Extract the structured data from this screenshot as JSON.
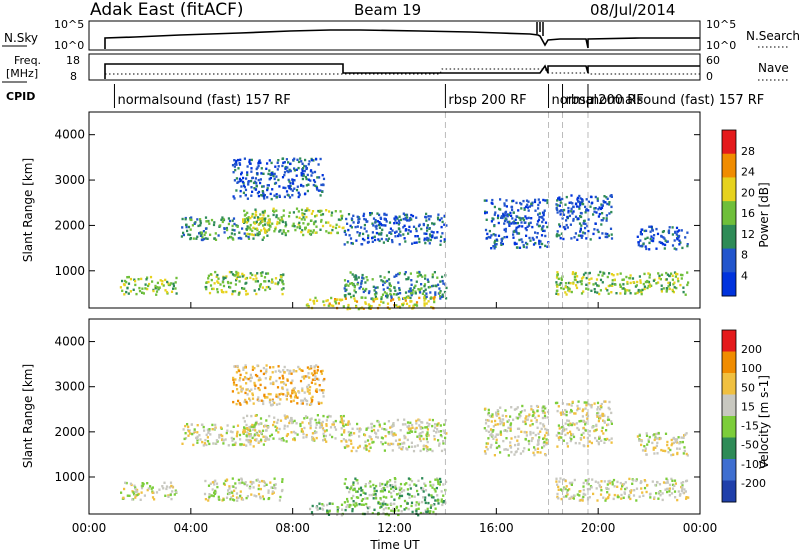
{
  "header": {
    "station": "Adak East (fitACF)",
    "beam": "Beam 19",
    "date": "08/Jul/2014"
  },
  "panels": {
    "nsky_label": "N.Sky",
    "nsky_ticks": [
      "10^5",
      "10^0"
    ],
    "nsearch_label": "N.Search",
    "nsearch_ticks": [
      "10^5",
      "10^0"
    ],
    "freq_label": "Freq.",
    "freq_unit": "[MHz]",
    "freq_ticks": [
      "18",
      "8"
    ],
    "nave_label": "Nave",
    "nave_ticks": [
      "60",
      "0"
    ],
    "cpid_label": "CPID",
    "cpid_segments": [
      {
        "start": 1.0,
        "end": 14.0,
        "label": "normalsound (fast) 157 RF"
      },
      {
        "start": 14.0,
        "end": 18.0,
        "label": "rbsp 200 RF"
      },
      {
        "start": 18.05,
        "end": 18.6,
        "label": "normal"
      },
      {
        "start": 18.6,
        "end": 19.6,
        "label": "rbsp 200 RF"
      },
      {
        "start": 19.6,
        "end": 24.0,
        "label": "normalsound (fast) 157 RF"
      }
    ]
  },
  "colors": {
    "power": [
      "#0033dd",
      "#2255cc",
      "#2e8b57",
      "#6fbf3a",
      "#e6d21e",
      "#f08c00",
      "#e41a1c"
    ],
    "velocity": [
      "#1f3faa",
      "#3f6fd0",
      "#2e8b57",
      "#7ccd3a",
      "#c8c8c0",
      "#f0c040",
      "#f08c00",
      "#e41a1c"
    ]
  },
  "chart_data": [
    {
      "type": "heatmap",
      "title": "",
      "xlabel": "",
      "ylabel": "Slant Range [km]",
      "quantity": "Power",
      "colorbar_label": "Power [dB]",
      "colorbar_ticks": [
        "28",
        "24",
        "20",
        "16",
        "12",
        "8",
        "4"
      ],
      "xlim": [
        0,
        24
      ],
      "ylim": [
        180,
        4500
      ],
      "y_ticks": [
        "4000",
        "3000",
        "2000",
        "1000"
      ],
      "y_tick_values": [
        4000,
        3000,
        2000,
        1000
      ],
      "backscatter_regions": [
        {
          "t0": 1.2,
          "t1": 3.4,
          "r0": 500,
          "r1": 900,
          "level": 3
        },
        {
          "t0": 3.6,
          "t1": 7.0,
          "r0": 1700,
          "r1": 2200,
          "level": 2
        },
        {
          "t0": 4.5,
          "t1": 7.6,
          "r0": 500,
          "r1": 1000,
          "level": 3
        },
        {
          "t0": 5.6,
          "t1": 9.2,
          "r0": 2600,
          "r1": 3500,
          "level": 1
        },
        {
          "t0": 6.0,
          "t1": 10.0,
          "r0": 1800,
          "r1": 2400,
          "level": 3
        },
        {
          "t0": 10.0,
          "t1": 14.0,
          "r0": 1600,
          "r1": 2300,
          "level": 1
        },
        {
          "t0": 10.0,
          "t1": 14.0,
          "r0": 400,
          "r1": 1000,
          "level": 2
        },
        {
          "t0": 8.5,
          "t1": 13.6,
          "r0": 180,
          "r1": 450,
          "level": 4
        },
        {
          "t0": 15.5,
          "t1": 18.0,
          "r0": 1500,
          "r1": 2600,
          "level": 1
        },
        {
          "t0": 18.3,
          "t1": 20.5,
          "r0": 1700,
          "r1": 2700,
          "level": 1
        },
        {
          "t0": 18.3,
          "t1": 23.5,
          "r0": 500,
          "r1": 1000,
          "level": 3
        },
        {
          "t0": 21.5,
          "t1": 23.5,
          "r0": 1500,
          "r1": 2000,
          "level": 1
        }
      ]
    },
    {
      "type": "heatmap",
      "title": "",
      "xlabel": "Time UT",
      "ylabel": "Slant Range [km]",
      "quantity": "Velocity",
      "colorbar_label": "Velocity [m s-1]",
      "colorbar_ticks": [
        "200",
        "100",
        "50",
        "15",
        "-15",
        "-50",
        "-100",
        "-200"
      ],
      "xlim": [
        0,
        24
      ],
      "ylim": [
        180,
        4500
      ],
      "x_ticks": [
        "00:00",
        "04:00",
        "08:00",
        "12:00",
        "16:00",
        "20:00",
        "00:00"
      ],
      "x_tick_values": [
        0,
        4,
        8,
        12,
        16,
        20,
        24
      ],
      "y_ticks": [
        "4000",
        "3000",
        "2000",
        "1000"
      ],
      "y_tick_values": [
        4000,
        3000,
        2000,
        1000
      ],
      "backscatter_regions": [
        {
          "t0": 1.2,
          "t1": 3.4,
          "r0": 500,
          "r1": 900,
          "level": 4
        },
        {
          "t0": 3.6,
          "t1": 7.0,
          "r0": 1700,
          "r1": 2200,
          "level": 4
        },
        {
          "t0": 4.5,
          "t1": 7.6,
          "r0": 500,
          "r1": 1000,
          "level": 4
        },
        {
          "t0": 5.6,
          "t1": 9.2,
          "r0": 2600,
          "r1": 3500,
          "level": 5
        },
        {
          "t0": 6.0,
          "t1": 10.0,
          "r0": 1800,
          "r1": 2400,
          "level": 4
        },
        {
          "t0": 10.0,
          "t1": 14.0,
          "r0": 1600,
          "r1": 2300,
          "level": 4
        },
        {
          "t0": 10.0,
          "t1": 14.0,
          "r0": 400,
          "r1": 1000,
          "level": 3
        },
        {
          "t0": 8.5,
          "t1": 13.6,
          "r0": 180,
          "r1": 450,
          "level": 3
        },
        {
          "t0": 15.5,
          "t1": 18.0,
          "r0": 1500,
          "r1": 2600,
          "level": 4
        },
        {
          "t0": 18.3,
          "t1": 20.5,
          "r0": 1700,
          "r1": 2700,
          "level": 4
        },
        {
          "t0": 18.3,
          "t1": 23.5,
          "r0": 500,
          "r1": 1000,
          "level": 4
        },
        {
          "t0": 21.5,
          "t1": 23.5,
          "r0": 1500,
          "r1": 2000,
          "level": 4
        }
      ]
    }
  ]
}
